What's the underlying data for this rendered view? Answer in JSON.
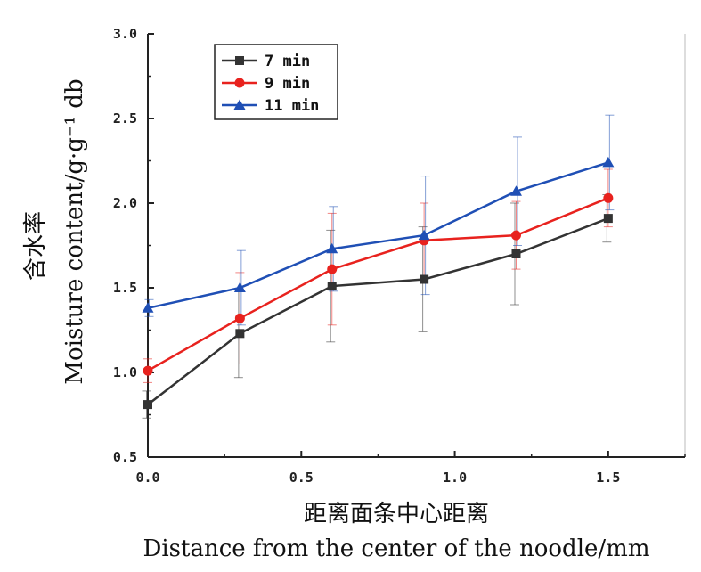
{
  "chart_data": {
    "type": "line",
    "title": "",
    "xlabel_cn": "距离面条中心距离",
    "xlabel_en": "Distance from the center of the noodle/mm",
    "ylabel_cn": "含水率",
    "ylabel_en": "Moisture content/g·g⁻¹ db",
    "xlim": [
      0.0,
      1.75
    ],
    "ylim": [
      0.5,
      3.0
    ],
    "x_ticks": [
      "0.0",
      "0.5",
      "1.0",
      "1.5"
    ],
    "y_ticks": [
      "0.5",
      "1.0",
      "1.5",
      "2.0",
      "2.5",
      "3.0"
    ],
    "x": [
      0.0,
      0.3,
      0.6,
      0.9,
      1.2,
      1.5
    ],
    "legend_position": "top-left",
    "grid": false,
    "series": [
      {
        "name": "7 min",
        "color": "#333333",
        "marker": "square",
        "values": [
          0.81,
          1.23,
          1.51,
          1.55,
          1.7,
          1.91
        ],
        "errors": [
          0.08,
          0.26,
          0.33,
          0.31,
          0.3,
          0.14
        ]
      },
      {
        "name": "9 min",
        "color": "#e8221e",
        "marker": "circle",
        "values": [
          1.01,
          1.32,
          1.61,
          1.78,
          1.81,
          2.03
        ],
        "errors": [
          0.07,
          0.27,
          0.33,
          0.22,
          0.2,
          0.17
        ]
      },
      {
        "name": "11 min",
        "color": "#1f4fb5",
        "marker": "triangle",
        "values": [
          1.38,
          1.5,
          1.73,
          1.81,
          2.07,
          2.24
        ],
        "errors": [
          0.05,
          0.22,
          0.25,
          0.35,
          0.32,
          0.28
        ]
      }
    ]
  }
}
